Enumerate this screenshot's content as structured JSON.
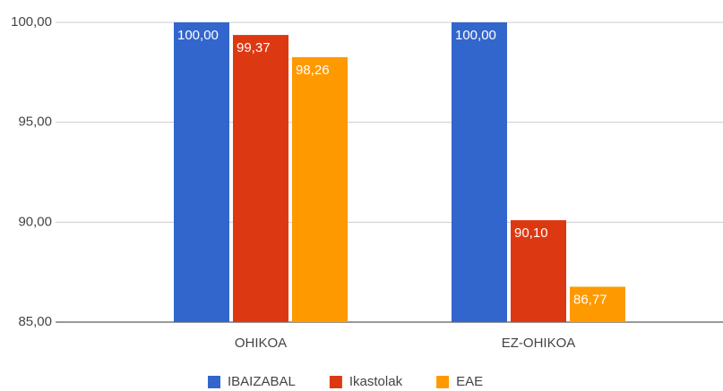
{
  "chart_data": {
    "type": "bar",
    "categories": [
      "OHIKOA",
      "EZ-OHIKOA"
    ],
    "series": [
      {
        "name": "IBAIZABAL",
        "color": "#3366cc",
        "values": [
          100,
          100
        ],
        "value_labels": [
          "100,00",
          "100,00"
        ]
      },
      {
        "name": "Ikastolak",
        "color": "#dc3912",
        "values": [
          99.37,
          90.1
        ],
        "value_labels": [
          "99,37",
          "90,10"
        ]
      },
      {
        "name": "EAE",
        "color": "#ff9900",
        "values": [
          98.26,
          86.77
        ],
        "value_labels": [
          "98,26",
          "86,77"
        ]
      }
    ],
    "ylim": [
      85,
      100
    ],
    "yticks": [
      {
        "value": 85,
        "label": "85,00"
      },
      {
        "value": 90,
        "label": "90,00"
      },
      {
        "value": 95,
        "label": "95,00"
      },
      {
        "value": 100,
        "label": "100,00"
      }
    ],
    "grid": true,
    "legend": "bottom"
  }
}
